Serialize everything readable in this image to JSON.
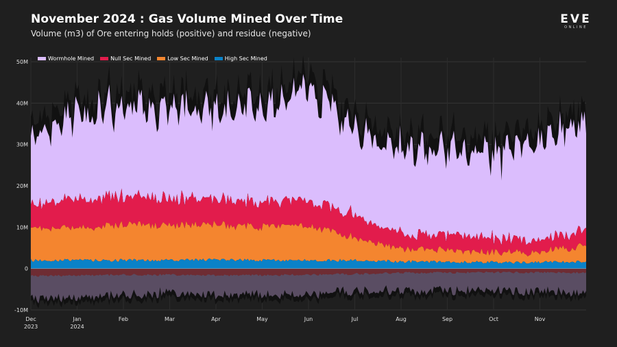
{
  "header": {
    "title": "November 2024 : Gas Volume Mined Over Time",
    "subtitle": "Volume (m3) of Ore entering holds (positive) and residue (negative)",
    "logo_text": "EVE",
    "logo_sub": "ONLINE"
  },
  "colors": {
    "background": "#1f1f1f",
    "wormhole": "#dbbdfd",
    "null_sec": "#e21c4c",
    "low_sec": "#f4852f",
    "high_sec": "#0a82c8",
    "total_outline": "#111111",
    "residue": "#5a4d63",
    "residue_dark": "#6e2c33"
  },
  "chart_data": {
    "type": "area",
    "title": "November 2024 : Gas Volume Mined Over Time",
    "subtitle": "Volume (m3) of Ore entering holds (positive) and residue (negative)",
    "xlabel": "",
    "ylabel": "",
    "ylim": [
      -10,
      50
    ],
    "y_unit": "M m3",
    "y_ticks": [
      {
        "value": -10,
        "label": "-10M"
      },
      {
        "value": 0,
        "label": "0"
      },
      {
        "value": 10,
        "label": "10M"
      },
      {
        "value": 20,
        "label": "20M"
      },
      {
        "value": 30,
        "label": "30M"
      },
      {
        "value": 40,
        "label": "40M"
      },
      {
        "value": 50,
        "label": "50M"
      }
    ],
    "x_range_months": [
      0,
      12
    ],
    "x_ticks": [
      {
        "pos": 0,
        "label": "Dec",
        "sub": "2023"
      },
      {
        "pos": 1,
        "label": "Jan",
        "sub": "2024"
      },
      {
        "pos": 2,
        "label": "Feb",
        "sub": ""
      },
      {
        "pos": 3,
        "label": "Mar",
        "sub": ""
      },
      {
        "pos": 4,
        "label": "Apr",
        "sub": ""
      },
      {
        "pos": 5,
        "label": "May",
        "sub": ""
      },
      {
        "pos": 6,
        "label": "Jun",
        "sub": ""
      },
      {
        "pos": 7,
        "label": "Jul",
        "sub": ""
      },
      {
        "pos": 8,
        "label": "Aug",
        "sub": ""
      },
      {
        "pos": 9,
        "label": "Sep",
        "sub": ""
      },
      {
        "pos": 10,
        "label": "Oct",
        "sub": ""
      },
      {
        "pos": 11,
        "label": "Nov",
        "sub": ""
      }
    ],
    "legend_placement": "top-left",
    "grid": true,
    "series": [
      {
        "name": "Wormhole Mined",
        "color_key": "wormhole",
        "values": [
          16,
          20,
          21,
          22,
          22,
          23,
          27,
          20.5,
          19.5,
          20.5,
          20,
          23.5,
          26
        ]
      },
      {
        "name": "Null Sec Mined",
        "color_key": "null_sec",
        "values": [
          6,
          7,
          7,
          6.5,
          6.5,
          6,
          6,
          5.5,
          3.5,
          3.5,
          3.5,
          3,
          3.5
        ]
      },
      {
        "name": "Low Sec Mined",
        "color_key": "low_sec",
        "values": [
          7.5,
          8,
          8.5,
          8.5,
          8.5,
          8,
          8.5,
          5.5,
          3,
          3,
          2.5,
          2.5,
          4
        ]
      },
      {
        "name": "High Sec Mined",
        "color_key": "high_sec",
        "values": [
          2,
          2,
          2,
          2,
          2.2,
          2,
          2,
          2,
          1.7,
          1.6,
          1.5,
          1.5,
          1.7
        ]
      }
    ],
    "residue_series": {
      "name": "Residue",
      "values": [
        -7,
        -6.5,
        -6,
        -5.5,
        -6,
        -6,
        -6,
        -5,
        -5,
        -5,
        -5,
        -5,
        -5.5
      ],
      "dark_band_values": [
        -1.8,
        -1.6,
        -1.5,
        -1.5,
        -1.6,
        -1.6,
        -1.5,
        -1.3,
        -1,
        -1,
        -0.9,
        -0.9,
        -1
      ]
    }
  },
  "legend": {
    "items": [
      {
        "label": "Wormhole Mined",
        "color": "#dbbdfd"
      },
      {
        "label": "Null Sec Mined",
        "color": "#e21c4c"
      },
      {
        "label": "Low Sec Mined",
        "color": "#f4852f"
      },
      {
        "label": "High Sec Mined",
        "color": "#0a82c8"
      }
    ]
  }
}
